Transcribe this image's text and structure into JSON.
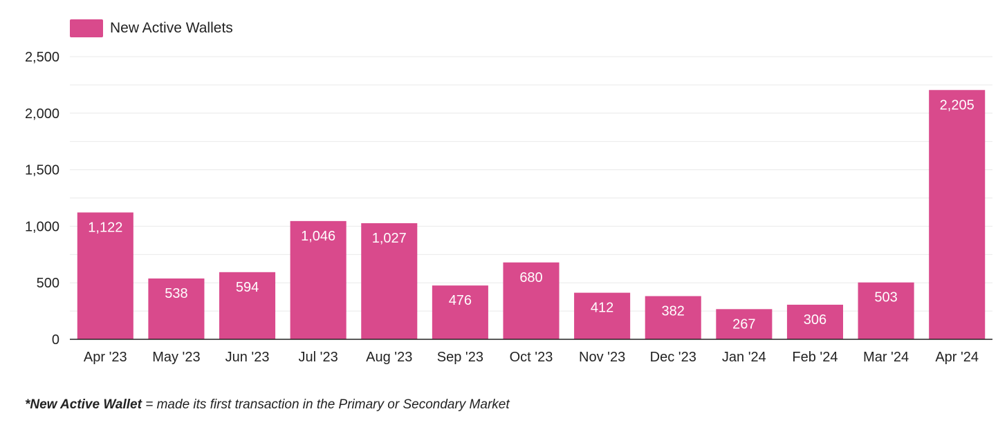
{
  "chart_data": {
    "type": "bar",
    "categories": [
      "Apr '23",
      "May '23",
      "Jun '23",
      "Jul '23",
      "Aug '23",
      "Sep '23",
      "Oct '23",
      "Nov '23",
      "Dec '23",
      "Jan '24",
      "Feb '24",
      "Mar '24",
      "Apr '24"
    ],
    "series": [
      {
        "name": "New Active Wallets",
        "values": [
          1122,
          538,
          594,
          1046,
          1027,
          476,
          680,
          412,
          382,
          267,
          306,
          503,
          2205
        ]
      }
    ],
    "value_labels": [
      "1,122",
      "538",
      "594",
      "1,046",
      "1,027",
      "476",
      "680",
      "412",
      "382",
      "267",
      "306",
      "503",
      "2,205"
    ],
    "ylim": [
      0,
      2500
    ],
    "yticks": [
      0,
      500,
      1000,
      1500,
      2000,
      2500
    ],
    "ytick_labels": [
      "0",
      "500",
      "1,000",
      "1,500",
      "2,000",
      "2,500"
    ],
    "grid": true,
    "legend_position": "top-left",
    "bar_color": "#d94a8c",
    "label_color": "#ffffff"
  },
  "footnote": {
    "term": "*New Active Wallet",
    "definition": " = made its first transaction in the Primary or Secondary Market"
  }
}
